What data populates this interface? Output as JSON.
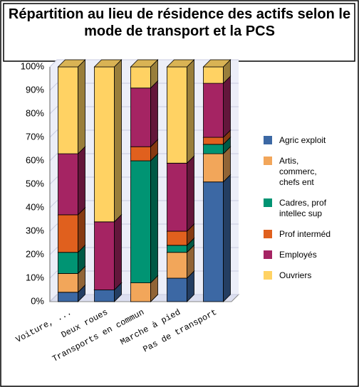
{
  "chart_data": {
    "type": "bar3d_stacked",
    "title": "Répartition au lieu de résidence des actifs selon le mode de transport et la PCS",
    "categories": [
      "Voiture, ...",
      "Deux roues",
      "Transports en commun",
      "Marche à pied",
      "Pas de transport"
    ],
    "series": [
      {
        "name": "Agric exploit",
        "color": "#3c68a4",
        "values": [
          4,
          5,
          0,
          10,
          51
        ]
      },
      {
        "name": "Artis, commerc, chefs ent",
        "color": "#f2a65a",
        "values": [
          8,
          0,
          8,
          11,
          12
        ]
      },
      {
        "name": "Cadres, prof intellec sup",
        "color": "#009473",
        "values": [
          9,
          0,
          52,
          3,
          4
        ]
      },
      {
        "name": "Prof interméd",
        "color": "#e0601e",
        "values": [
          16,
          0,
          6,
          6,
          3
        ]
      },
      {
        "name": "Employés",
        "color": "#a52463",
        "values": [
          26,
          29,
          25,
          29,
          23
        ]
      },
      {
        "name": "Ouvriers",
        "color": "#ffd263",
        "values": [
          37,
          66,
          9,
          41,
          7
        ]
      }
    ],
    "ylim": [
      0,
      100
    ],
    "yticks": [
      {
        "value": 0,
        "label": "0%"
      },
      {
        "value": 10,
        "label": "10%"
      },
      {
        "value": 20,
        "label": "20%"
      },
      {
        "value": 30,
        "label": "30%"
      },
      {
        "value": 40,
        "label": "40%"
      },
      {
        "value": 50,
        "label": "50%"
      },
      {
        "value": 60,
        "label": "60%"
      },
      {
        "value": 70,
        "label": "70%"
      },
      {
        "value": 80,
        "label": "80%"
      },
      {
        "value": 90,
        "label": "90%"
      },
      {
        "value": 100,
        "label": "100%"
      }
    ],
    "grid": true,
    "legend": "right"
  }
}
